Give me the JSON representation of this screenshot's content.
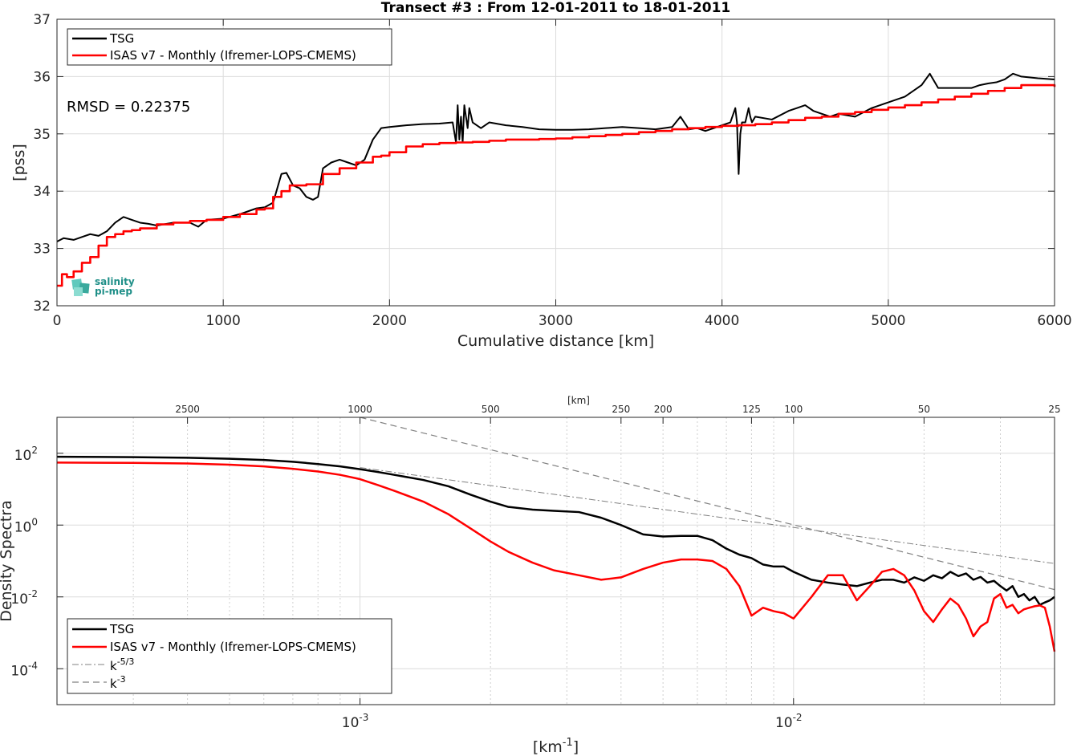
{
  "chart_data": [
    {
      "type": "line",
      "title": "Transect #3 : From 12-01-2011 to 18-01-2011",
      "xlabel": "Cumulative distance [km]",
      "ylabel": "[pss]",
      "xlim": [
        0,
        6000
      ],
      "ylim": [
        32,
        37
      ],
      "x_ticks": [
        "0",
        "1000",
        "2000",
        "3000",
        "4000",
        "5000",
        "6000"
      ],
      "y_ticks": [
        "32",
        "33",
        "34",
        "35",
        "36",
        "37"
      ],
      "grid": true,
      "legend_position": "top-left",
      "annotation": "RMSD = 0.22375",
      "series": [
        {
          "name": "TSG",
          "color": "#000000",
          "x": [
            0,
            40,
            100,
            150,
            200,
            250,
            300,
            350,
            400,
            450,
            500,
            550,
            600,
            700,
            800,
            850,
            900,
            1000,
            1100,
            1200,
            1250,
            1300,
            1330,
            1350,
            1380,
            1420,
            1460,
            1500,
            1540,
            1570,
            1600,
            1650,
            1700,
            1750,
            1800,
            1850,
            1900,
            1950,
            2000,
            2100,
            2200,
            2300,
            2380,
            2400,
            2410,
            2420,
            2430,
            2440,
            2450,
            2470,
            2480,
            2500,
            2550,
            2600,
            2700,
            2800,
            2900,
            3000,
            3100,
            3200,
            3300,
            3400,
            3500,
            3600,
            3700,
            3750,
            3800,
            3850,
            3900,
            4000,
            4050,
            4080,
            4090,
            4100,
            4110,
            4120,
            4140,
            4160,
            4170,
            4180,
            4200,
            4300,
            4400,
            4450,
            4500,
            4550,
            4600,
            4650,
            4700,
            4800,
            4900,
            5000,
            5100,
            5200,
            5250,
            5300,
            5400,
            5500,
            5550,
            5600,
            5650,
            5700,
            5750,
            5800,
            5900,
            6000
          ],
          "y": [
            33.12,
            33.18,
            33.15,
            33.2,
            33.25,
            33.22,
            33.3,
            33.45,
            33.55,
            33.5,
            33.45,
            33.43,
            33.4,
            33.45,
            33.45,
            33.38,
            33.5,
            33.52,
            33.6,
            33.7,
            33.72,
            33.8,
            34.1,
            34.3,
            34.32,
            34.1,
            34.05,
            33.9,
            33.85,
            33.9,
            34.4,
            34.5,
            34.55,
            34.5,
            34.45,
            34.55,
            34.9,
            35.1,
            35.12,
            35.15,
            35.17,
            35.18,
            35.2,
            34.85,
            35.5,
            34.9,
            35.3,
            34.85,
            35.5,
            35.1,
            35.45,
            35.2,
            35.1,
            35.2,
            35.15,
            35.12,
            35.08,
            35.07,
            35.07,
            35.08,
            35.1,
            35.12,
            35.1,
            35.08,
            35.12,
            35.3,
            35.08,
            35.1,
            35.05,
            35.15,
            35.2,
            35.45,
            35.2,
            34.3,
            35.0,
            35.2,
            35.2,
            35.45,
            35.3,
            35.2,
            35.3,
            35.25,
            35.4,
            35.45,
            35.5,
            35.4,
            35.35,
            35.3,
            35.35,
            35.3,
            35.45,
            35.55,
            35.65,
            35.85,
            36.05,
            35.8,
            35.8,
            35.8,
            35.85,
            35.88,
            35.9,
            35.95,
            36.05,
            36.0,
            35.97,
            35.95
          ]
        },
        {
          "name": "ISAS v7 - Monthly (Ifremer-LOPS-CMEMS)",
          "color": "#ff0000",
          "x": [
            0,
            30,
            60,
            100,
            150,
            200,
            250,
            300,
            350,
            400,
            450,
            500,
            600,
            700,
            800,
            900,
            1000,
            1100,
            1200,
            1250,
            1300,
            1350,
            1400,
            1500,
            1600,
            1700,
            1800,
            1900,
            1950,
            2000,
            2100,
            2200,
            2300,
            2400,
            2500,
            2600,
            2700,
            2800,
            2900,
            3000,
            3100,
            3200,
            3300,
            3400,
            3500,
            3600,
            3700,
            3800,
            3900,
            4000,
            4100,
            4200,
            4300,
            4400,
            4500,
            4600,
            4700,
            4800,
            4900,
            5000,
            5100,
            5200,
            5300,
            5400,
            5500,
            5600,
            5700,
            5800,
            5900,
            6000
          ],
          "y": [
            32.35,
            32.55,
            32.5,
            32.6,
            32.75,
            32.85,
            33.05,
            33.2,
            33.25,
            33.3,
            33.32,
            33.35,
            33.42,
            33.45,
            33.48,
            33.5,
            33.55,
            33.6,
            33.68,
            33.7,
            33.9,
            34.0,
            34.1,
            34.12,
            34.3,
            34.4,
            34.5,
            34.6,
            34.62,
            34.68,
            34.78,
            34.82,
            34.84,
            34.85,
            34.86,
            34.88,
            34.9,
            34.9,
            34.91,
            34.92,
            34.94,
            34.96,
            34.98,
            35.0,
            35.03,
            35.05,
            35.08,
            35.1,
            35.12,
            35.14,
            35.15,
            35.17,
            35.2,
            35.24,
            35.28,
            35.3,
            35.35,
            35.38,
            35.42,
            35.46,
            35.5,
            35.55,
            35.6,
            35.65,
            35.7,
            35.75,
            35.8,
            35.85,
            35.85,
            35.82
          ]
        }
      ]
    },
    {
      "type": "line",
      "title": "",
      "xlabel": "[km⁻¹]",
      "ylabel": "Density Spectra",
      "top_axis_label": "[km]",
      "x_scale": "log",
      "y_scale": "log",
      "xlim": [
        0.0002,
        0.04
      ],
      "ylim": [
        1e-05,
        1000
      ],
      "x_ticks": [
        "10⁻³",
        "10⁻²"
      ],
      "y_ticks": [
        "10⁻⁴",
        "10⁻²",
        "10⁰",
        "10²"
      ],
      "top_ticks": [
        "2500",
        "1000",
        "500",
        "250",
        "200",
        "125",
        "100",
        "50",
        "25"
      ],
      "grid": true,
      "legend_position": "bottom-left",
      "series": [
        {
          "name": "TSG",
          "color": "#000000",
          "x": [
            0.0002,
            0.0003,
            0.0004,
            0.0005,
            0.0006,
            0.0007,
            0.0008,
            0.0009,
            0.001,
            0.0011,
            0.0012,
            0.0014,
            0.0016,
            0.0018,
            0.002,
            0.0022,
            0.0025,
            0.0028,
            0.0032,
            0.0036,
            0.004,
            0.0045,
            0.005,
            0.0055,
            0.006,
            0.0065,
            0.007,
            0.0075,
            0.008,
            0.0085,
            0.009,
            0.0095,
            0.01,
            0.011,
            0.012,
            0.013,
            0.014,
            0.015,
            0.016,
            0.017,
            0.018,
            0.019,
            0.02,
            0.021,
            0.022,
            0.023,
            0.024,
            0.025,
            0.026,
            0.027,
            0.028,
            0.029,
            0.03,
            0.031,
            0.032,
            0.033,
            0.034,
            0.035,
            0.036,
            0.037,
            0.038,
            0.039,
            0.04
          ],
          "y": [
            80,
            78,
            75,
            70,
            65,
            58,
            50,
            43,
            36,
            30,
            25,
            18,
            12,
            7,
            4.5,
            3.2,
            2.7,
            2.5,
            2.3,
            1.6,
            1.0,
            0.55,
            0.48,
            0.5,
            0.5,
            0.38,
            0.22,
            0.15,
            0.12,
            0.08,
            0.07,
            0.07,
            0.05,
            0.03,
            0.025,
            0.022,
            0.02,
            0.025,
            0.03,
            0.03,
            0.025,
            0.035,
            0.028,
            0.04,
            0.033,
            0.05,
            0.038,
            0.045,
            0.03,
            0.036,
            0.025,
            0.028,
            0.02,
            0.015,
            0.02,
            0.01,
            0.012,
            0.008,
            0.01,
            0.006,
            0.007,
            0.008,
            0.01
          ]
        },
        {
          "name": "ISAS v7 - Monthly (Ifremer-LOPS-CMEMS)",
          "color": "#ff0000",
          "x": [
            0.0002,
            0.0003,
            0.0004,
            0.0005,
            0.0006,
            0.0007,
            0.0008,
            0.0009,
            0.001,
            0.0011,
            0.0012,
            0.0014,
            0.0016,
            0.0018,
            0.002,
            0.0022,
            0.0025,
            0.0028,
            0.0032,
            0.0036,
            0.004,
            0.0045,
            0.005,
            0.0055,
            0.006,
            0.0065,
            0.007,
            0.0075,
            0.008,
            0.0085,
            0.009,
            0.0095,
            0.01,
            0.011,
            0.012,
            0.013,
            0.014,
            0.015,
            0.016,
            0.017,
            0.018,
            0.019,
            0.02,
            0.021,
            0.022,
            0.023,
            0.024,
            0.025,
            0.026,
            0.027,
            0.028,
            0.029,
            0.03,
            0.031,
            0.032,
            0.033,
            0.034,
            0.035,
            0.036,
            0.037,
            0.038,
            0.039,
            0.04
          ],
          "y": [
            55,
            54,
            52,
            48,
            43,
            37,
            31,
            25,
            19,
            13,
            9,
            4.5,
            2.0,
            0.8,
            0.35,
            0.18,
            0.09,
            0.055,
            0.04,
            0.03,
            0.035,
            0.06,
            0.09,
            0.11,
            0.11,
            0.1,
            0.06,
            0.02,
            0.003,
            0.005,
            0.004,
            0.0035,
            0.0025,
            0.01,
            0.04,
            0.04,
            0.008,
            0.02,
            0.05,
            0.06,
            0.04,
            0.015,
            0.004,
            0.002,
            0.0045,
            0.009,
            0.006,
            0.0025,
            0.0008,
            0.0015,
            0.002,
            0.009,
            0.012,
            0.005,
            0.006,
            0.0035,
            0.0045,
            0.005,
            0.0055,
            0.0058,
            0.005,
            0.0015,
            0.0003
          ]
        },
        {
          "name": "k-5/3",
          "color": "#808080",
          "dash": "dashdot",
          "x": [
            0.001,
            0.04
          ],
          "y": [
            40,
            0.085
          ]
        },
        {
          "name": "k-3",
          "color": "#808080",
          "dash": "dashed",
          "x": [
            0.001,
            0.04
          ],
          "y": [
            1000,
            0.016
          ]
        }
      ]
    }
  ],
  "logo": {
    "line1": "salinity",
    "line2": "pi-mep"
  },
  "legend_bottom": {
    "k53_base": "k",
    "k53_exp": "-5/3",
    "k3_base": "k",
    "k3_exp": "-3"
  },
  "axis_bottom": {
    "xlabel_base": "[km",
    "xlabel_exp": "-1",
    "xlabel_end": "]",
    "x_ticks": [
      {
        "base": "10",
        "exp": "-3"
      },
      {
        "base": "10",
        "exp": "-2"
      }
    ],
    "y_ticks": [
      {
        "base": "10",
        "exp": "-4"
      },
      {
        "base": "10",
        "exp": "-2"
      },
      {
        "base": "10",
        "exp": "0"
      },
      {
        "base": "10",
        "exp": "2"
      }
    ]
  }
}
